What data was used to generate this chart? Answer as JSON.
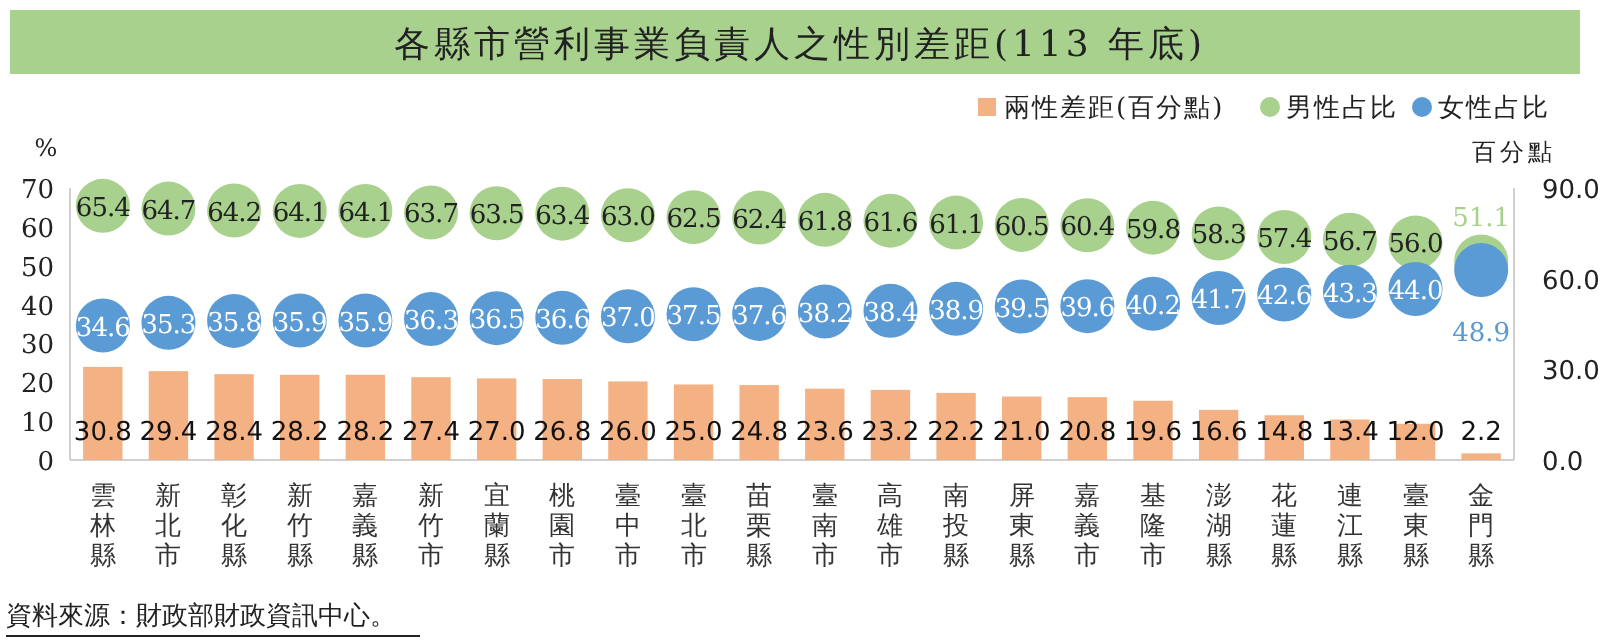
{
  "chart_data": {
    "type": "bar",
    "title": "各縣市營利事業負責人之性別差距(113 年底)",
    "ylabel": "%",
    "y2label": "百分點",
    "categories": [
      "雲林縣",
      "新北市",
      "彰化縣",
      "新竹縣",
      "嘉義縣",
      "新竹市",
      "宜蘭縣",
      "桃園市",
      "臺中市",
      "臺北市",
      "苗栗縣",
      "臺南市",
      "高雄市",
      "南投縣",
      "屏東縣",
      "嘉義市",
      "基隆市",
      "澎湖縣",
      "花蓮縣",
      "連江縣",
      "臺東縣",
      "金門縣"
    ],
    "series": [
      {
        "name": "兩性差距(百分點)",
        "axis": "y2",
        "color": "#f4b183",
        "values": [
          30.8,
          29.4,
          28.4,
          28.2,
          28.2,
          27.4,
          27.0,
          26.8,
          26.0,
          25.0,
          24.8,
          23.6,
          23.2,
          22.2,
          21.0,
          20.8,
          19.6,
          16.6,
          14.8,
          13.4,
          12.0,
          2.2
        ],
        "value_labels": [
          "30.8",
          "29.4",
          "28.4",
          "28.2",
          "28.2",
          "27.4",
          "27.0",
          "26.8",
          "26.0",
          "25.0",
          "24.8",
          "23.6",
          "23.2",
          "22.2",
          "21.0",
          "20.8",
          "19.6",
          "16.6",
          "14.8",
          "13.4",
          "12.0",
          "2.2"
        ]
      },
      {
        "name": "男性占比",
        "type": "scatter",
        "marker": "circle",
        "color": "#a9d18e",
        "values": [
          65.4,
          64.7,
          64.2,
          64.1,
          64.1,
          63.7,
          63.5,
          63.4,
          63.0,
          62.5,
          62.4,
          61.8,
          61.6,
          61.1,
          60.5,
          60.4,
          59.8,
          58.3,
          57.4,
          56.7,
          56.0,
          51.1
        ],
        "value_labels": [
          "65.4",
          "64.7",
          "64.2",
          "64.1",
          "64.1",
          "63.7",
          "63.5",
          "63.4",
          "63.0",
          "62.5",
          "62.4",
          "61.8",
          "61.6",
          "61.1",
          "60.5",
          "60.4",
          "59.8",
          "58.3",
          "57.4",
          "56.7",
          "56.0",
          "51.1"
        ]
      },
      {
        "name": "女性占比",
        "type": "scatter",
        "marker": "circle",
        "color": "#5b9bd5",
        "values": [
          34.6,
          35.3,
          35.8,
          35.9,
          35.9,
          36.3,
          36.5,
          36.6,
          37.0,
          37.5,
          37.6,
          38.2,
          38.4,
          38.9,
          39.5,
          39.6,
          40.2,
          41.7,
          42.6,
          43.3,
          44.0,
          48.9
        ],
        "value_labels": [
          "34.6",
          "35.3",
          "35.8",
          "35.9",
          "35.9",
          "36.3",
          "36.5",
          "36.6",
          "37.0",
          "37.5",
          "37.6",
          "38.2",
          "38.4",
          "38.9",
          "39.5",
          "39.6",
          "40.2",
          "41.7",
          "42.6",
          "43.3",
          "44.0",
          "48.9"
        ]
      }
    ],
    "ylim": [
      0,
      70
    ],
    "yticks": [
      0,
      10,
      20,
      30,
      40,
      50,
      60,
      70
    ],
    "y2lim": [
      0,
      90
    ],
    "y2ticks": [
      {
        "value": 0,
        "label": "0.0"
      },
      {
        "value": 30,
        "label": "30.0"
      },
      {
        "value": 60,
        "label": "60.0"
      },
      {
        "value": 90,
        "label": "90.0"
      }
    ],
    "grid": false,
    "legend": "top right",
    "annotations": [
      "資料來源：財政部財政資訊中心。"
    ]
  }
}
